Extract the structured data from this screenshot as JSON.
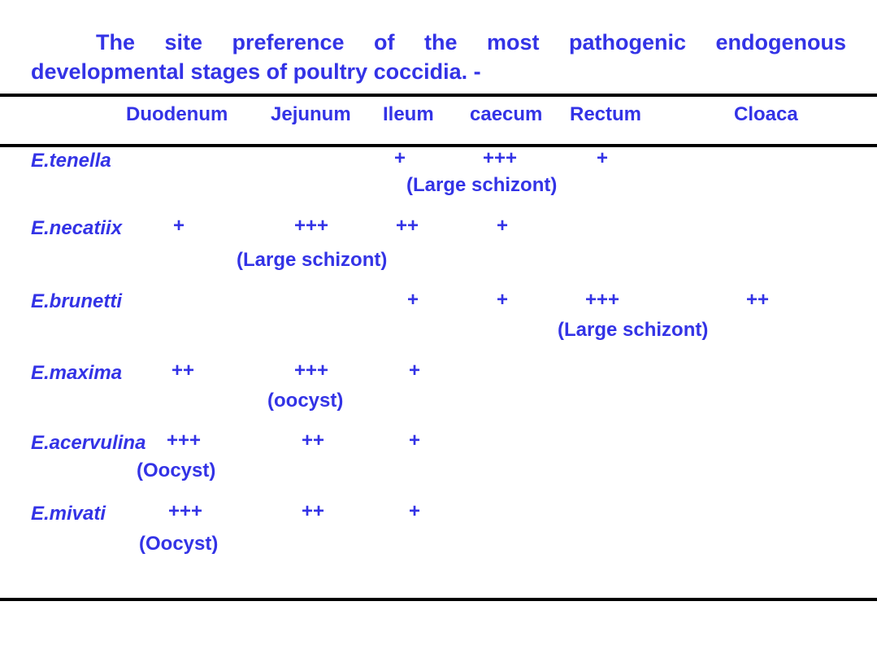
{
  "title": {
    "line1": "The site preference of the most pathogenic endogenous",
    "line2": "developmental stages of poultry coccidia. -"
  },
  "columns": [
    "Duodenum",
    "Jejunum",
    "Ileum",
    "caecum",
    "Rectum",
    "Cloaca"
  ],
  "rows": [
    {
      "species": "E.tenella",
      "marks": [
        "+",
        "+++",
        "+"
      ],
      "note": "(Large schizont)"
    },
    {
      "species": "E.necatiix",
      "marks": [
        "+",
        "+++",
        "++",
        "+"
      ],
      "note": "(Large schizont)"
    },
    {
      "species": "E.brunetti",
      "marks": [
        "+",
        "+",
        "+++",
        "++"
      ],
      "note": "(Large schizont)"
    },
    {
      "species": "E.maxima",
      "marks": [
        "++",
        "+++",
        "+"
      ],
      "note": "(oocyst)"
    },
    {
      "species": "E.acervulina",
      "marks": [
        "+++",
        "++",
        "+"
      ],
      "note": "(Oocyst)"
    },
    {
      "species": "E.mivati",
      "marks": [
        "+++",
        "++",
        "+"
      ],
      "note": "(Oocyst)"
    }
  ],
  "colors": {
    "text": "#3333e6",
    "rule": "#000000",
    "background": "#ffffff"
  }
}
